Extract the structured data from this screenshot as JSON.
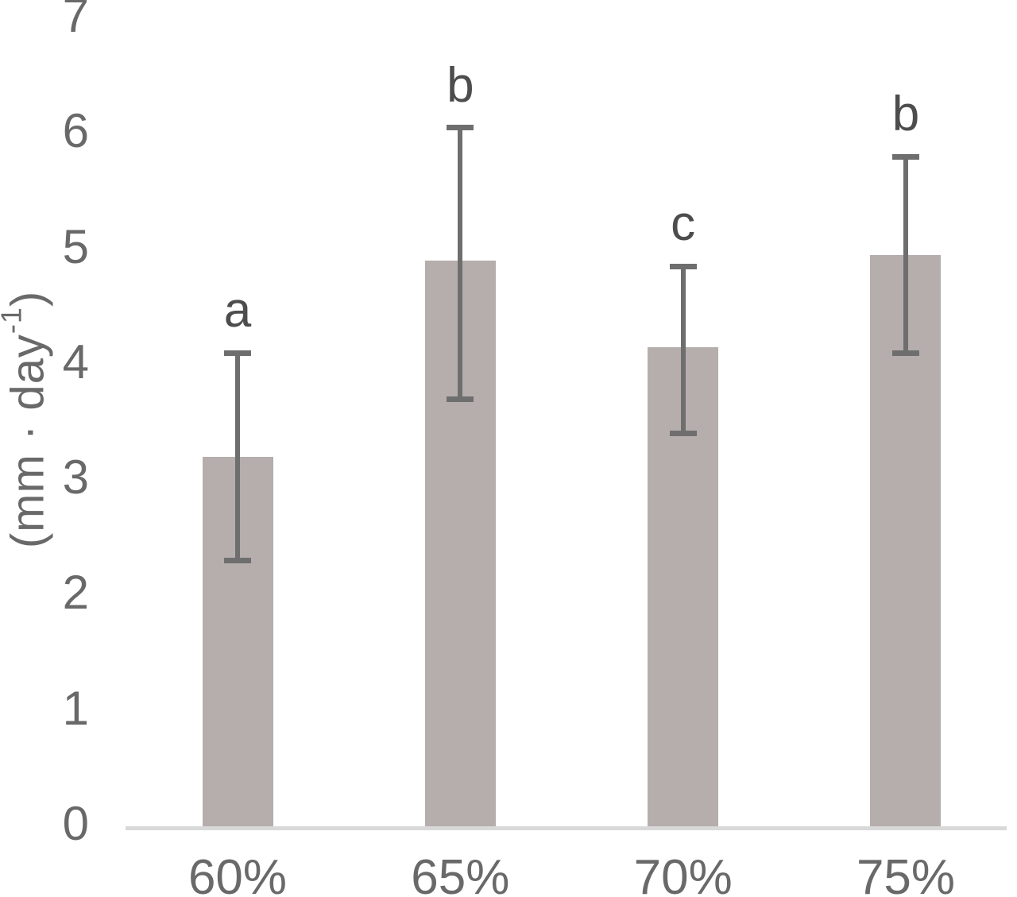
{
  "chart_data": {
    "type": "bar",
    "title": "",
    "xlabel": "",
    "ylabel_text": "(mm · day⁻¹)",
    "ylabel_parts": {
      "prefix": "(mm · day",
      "superscript": "-1",
      "suffix": ")"
    },
    "categories": [
      "60%",
      "65%",
      "70%",
      "75%"
    ],
    "values": [
      3.2,
      4.9,
      4.15,
      4.95
    ],
    "error_low": [
      2.3,
      3.7,
      3.4,
      4.1
    ],
    "error_high": [
      4.1,
      6.05,
      4.85,
      5.8
    ],
    "significance_letters": [
      "a",
      "b",
      "c",
      "b"
    ],
    "yticks": [
      0,
      1,
      2,
      3,
      4,
      5,
      6,
      7
    ],
    "ylim": [
      0,
      7
    ],
    "grid": false,
    "legend": false,
    "colors": {
      "bar_fill": "#b5aeac",
      "error_bar": "#6e6e6e",
      "axis_line": "#d9d9d9",
      "axis_text": "#696969",
      "letter_text": "#4d4d4d"
    }
  }
}
